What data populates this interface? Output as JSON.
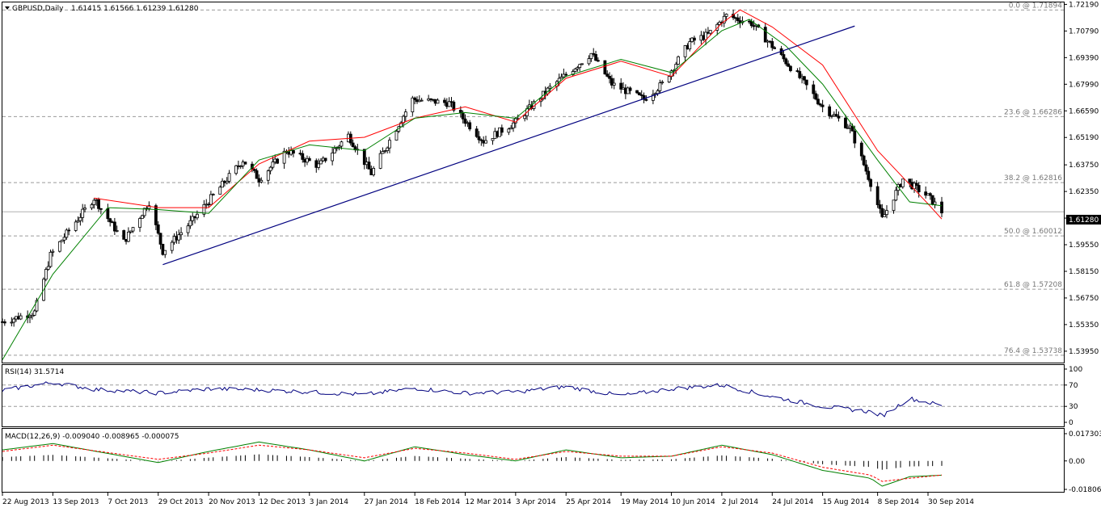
{
  "chart_data": [
    {
      "type": "candlestick",
      "symbol_header": "GBPUSD,Daily",
      "ohlc_header": "1.61415 1.61566 1.61239 1.61280",
      "current_price": 1.6128,
      "current_price_label": "1.61280",
      "y_range": [
        1.5335,
        1.7225
      ],
      "y_ticks": [
        "1.72190",
        "1.70790",
        "1.69390",
        "1.67990",
        "1.66590",
        "1.65190",
        "1.63750",
        "1.62350",
        "1.60950",
        "1.59550",
        "1.58150",
        "1.56750",
        "1.55350",
        "1.53950"
      ],
      "x_ticks": [
        "22 Aug 2013",
        "13 Sep 2013",
        "7 Oct 2013",
        "29 Oct 2013",
        "20 Nov 2013",
        "12 Dec 2013",
        "3 Jan 2014",
        "27 Jan 2014",
        "18 Feb 2014",
        "12 Mar 2014",
        "3 Apr 2014",
        "25 Apr 2014",
        "19 May 2014",
        "10 Jun 2014",
        "2 Jul 2014",
        "24 Jul 2014",
        "15 Aug 2014",
        "8 Sep 2014",
        "30 Sep 2014"
      ],
      "fibonacci_levels": [
        {
          "label": "0.0 @ 1.71894",
          "price": 1.71894
        },
        {
          "label": "23.6 @ 1.66286",
          "price": 1.66286
        },
        {
          "label": "38.2 @ 1.62816",
          "price": 1.62816
        },
        {
          "label": "50.0 @ 1.60012",
          "price": 1.60012
        },
        {
          "label": "61.8 @ 1.57208",
          "price": 1.57208
        },
        {
          "label": "76.4 @ 1.53738",
          "price": 1.53738
        }
      ],
      "trendline": {
        "from": {
          "date": "31 Oct 2013",
          "price": 1.585
        },
        "to": {
          "date": "29 Aug 2014",
          "price": 1.7105
        },
        "color": "#00007f"
      },
      "price_path": [
        {
          "date": "22 Aug 2013",
          "price": 1.555
        },
        {
          "date": "5 Sep 2013",
          "price": 1.56
        },
        {
          "date": "12 Sep 2013",
          "price": 1.59
        },
        {
          "date": "20 Sep 2013",
          "price": 1.603
        },
        {
          "date": "1 Oct 2013",
          "price": 1.62
        },
        {
          "date": "14 Oct 2013",
          "price": 1.597
        },
        {
          "date": "25 Oct 2013",
          "price": 1.618
        },
        {
          "date": "31 Oct 2013",
          "price": 1.592
        },
        {
          "date": "12 Nov 2013",
          "price": 1.607
        },
        {
          "date": "5 Dec 2013",
          "price": 1.64
        },
        {
          "date": "12 Dec 2013",
          "price": 1.63
        },
        {
          "date": "24 Dec 2013",
          "price": 1.645
        },
        {
          "date": "7 Jan 2014",
          "price": 1.637
        },
        {
          "date": "20 Jan 2014",
          "price": 1.653
        },
        {
          "date": "30 Jan 2014",
          "price": 1.633
        },
        {
          "date": "17 Feb 2014",
          "price": 1.672
        },
        {
          "date": "5 Mar 2014",
          "price": 1.67
        },
        {
          "date": "20 Mar 2014",
          "price": 1.65
        },
        {
          "date": "3 Apr 2014",
          "price": 1.66
        },
        {
          "date": "18 Apr 2014",
          "price": 1.678
        },
        {
          "date": "6 May 2014",
          "price": 1.696
        },
        {
          "date": "15 May 2014",
          "price": 1.68
        },
        {
          "date": "29 May 2014",
          "price": 1.672
        },
        {
          "date": "6 Jun 2014",
          "price": 1.68
        },
        {
          "date": "18 Jun 2014",
          "price": 1.702
        },
        {
          "date": "26 Jun 2014",
          "price": 1.706
        },
        {
          "date": "4 Jul 2014",
          "price": 1.716
        },
        {
          "date": "15 Jul 2014",
          "price": 1.712
        },
        {
          "date": "24 Jul 2014",
          "price": 1.7
        },
        {
          "date": "6 Aug 2014",
          "price": 1.682
        },
        {
          "date": "15 Aug 2014",
          "price": 1.668
        },
        {
          "date": "27 Aug 2014",
          "price": 1.657
        },
        {
          "date": "5 Sep 2014",
          "price": 1.628
        },
        {
          "date": "10 Sep 2014",
          "price": 1.609
        },
        {
          "date": "19 Sep 2014",
          "price": 1.63
        },
        {
          "date": "30 Sep 2014",
          "price": 1.621
        },
        {
          "date": "6 Oct 2014",
          "price": 1.6128
        }
      ],
      "moving_averages": [
        {
          "color": "#ff0000",
          "points": [
            {
              "date": "1 Oct 2013",
              "price": 1.62
            },
            {
              "date": "29 Oct 2013",
              "price": 1.615
            },
            {
              "date": "20 Nov 2013",
              "price": 1.615
            },
            {
              "date": "12 Dec 2013",
              "price": 1.638
            },
            {
              "date": "3 Jan 2014",
              "price": 1.65
            },
            {
              "date": "27 Jan 2014",
              "price": 1.652
            },
            {
              "date": "18 Feb 2014",
              "price": 1.662
            },
            {
              "date": "12 Mar 2014",
              "price": 1.668
            },
            {
              "date": "3 Apr 2014",
              "price": 1.66
            },
            {
              "date": "25 Apr 2014",
              "price": 1.683
            },
            {
              "date": "19 May 2014",
              "price": 1.692
            },
            {
              "date": "10 Jun 2014",
              "price": 1.684
            },
            {
              "date": "2 Jul 2014",
              "price": 1.712
            },
            {
              "date": "10 Jul 2014",
              "price": 1.719
            },
            {
              "date": "24 Jul 2014",
              "price": 1.71
            },
            {
              "date": "15 Aug 2014",
              "price": 1.69
            },
            {
              "date": "8 Sep 2014",
              "price": 1.645
            },
            {
              "date": "30 Sep 2014",
              "price": 1.617
            },
            {
              "date": "6 Oct 2014",
              "price": 1.609
            }
          ]
        },
        {
          "color": "#008000",
          "points": [
            {
              "date": "22 Aug 2013",
              "price": 1.535
            },
            {
              "date": "13 Sep 2013",
              "price": 1.58
            },
            {
              "date": "7 Oct 2013",
              "price": 1.615
            },
            {
              "date": "29 Oct 2013",
              "price": 1.614
            },
            {
              "date": "20 Nov 2013",
              "price": 1.612
            },
            {
              "date": "12 Dec 2013",
              "price": 1.64
            },
            {
              "date": "3 Jan 2014",
              "price": 1.648
            },
            {
              "date": "27 Jan 2014",
              "price": 1.645
            },
            {
              "date": "18 Feb 2014",
              "price": 1.662
            },
            {
              "date": "12 Mar 2014",
              "price": 1.665
            },
            {
              "date": "3 Apr 2014",
              "price": 1.662
            },
            {
              "date": "25 Apr 2014",
              "price": 1.684
            },
            {
              "date": "19 May 2014",
              "price": 1.693
            },
            {
              "date": "10 Jun 2014",
              "price": 1.686
            },
            {
              "date": "2 Jul 2014",
              "price": 1.708
            },
            {
              "date": "14 Jul 2014",
              "price": 1.714
            },
            {
              "date": "30 Jul 2014",
              "price": 1.7
            },
            {
              "date": "15 Aug 2014",
              "price": 1.68
            },
            {
              "date": "8 Sep 2014",
              "price": 1.64
            },
            {
              "date": "22 Sep 2014",
              "price": 1.618
            },
            {
              "date": "6 Oct 2014",
              "price": 1.616
            }
          ]
        }
      ]
    },
    {
      "type": "line",
      "label": "RSI(14) 31.5714",
      "y_range": [
        0,
        100
      ],
      "y_ticks": [
        "100",
        "70",
        "30",
        "0"
      ],
      "levels": [
        70,
        30
      ],
      "line_color": "#00007f",
      "points": [
        {
          "date": "22 Aug 2013",
          "value": 60
        },
        {
          "date": "13 Sep 2013",
          "value": 75
        },
        {
          "date": "1 Oct 2013",
          "value": 62
        },
        {
          "date": "29 Oct 2013",
          "value": 55
        },
        {
          "date": "20 Nov 2013",
          "value": 63
        },
        {
          "date": "12 Dec 2013",
          "value": 61
        },
        {
          "date": "3 Jan 2014",
          "value": 57
        },
        {
          "date": "27 Jan 2014",
          "value": 52
        },
        {
          "date": "18 Feb 2014",
          "value": 64
        },
        {
          "date": "12 Mar 2014",
          "value": 55
        },
        {
          "date": "3 Apr 2014",
          "value": 57
        },
        {
          "date": "25 Apr 2014",
          "value": 67
        },
        {
          "date": "19 May 2014",
          "value": 50
        },
        {
          "date": "10 Jun 2014",
          "value": 63
        },
        {
          "date": "2 Jul 2014",
          "value": 70
        },
        {
          "date": "24 Jul 2014",
          "value": 48
        },
        {
          "date": "15 Aug 2014",
          "value": 30
        },
        {
          "date": "5 Sep 2014",
          "value": 20
        },
        {
          "date": "10 Sep 2014",
          "value": 12
        },
        {
          "date": "22 Sep 2014",
          "value": 45
        },
        {
          "date": "6 Oct 2014",
          "value": 31.57
        }
      ]
    },
    {
      "type": "histogram+line",
      "label": "MACD(12,26,9) -0.009040 -0.008965 -0.000075",
      "y_range": [
        -0.01806,
        0.0173
      ],
      "y_ticks": [
        "0.017303",
        "0.00",
        "-0.018061"
      ],
      "series": [
        {
          "name": "macd",
          "color": "#008000",
          "points": [
            {
              "date": "22 Aug 2013",
              "value": 0.007
            },
            {
              "date": "13 Sep 2013",
              "value": 0.011
            },
            {
              "date": "29 Oct 2013",
              "value": -0.001
            },
            {
              "date": "20 Nov 2013",
              "value": 0.006
            },
            {
              "date": "12 Dec 2013",
              "value": 0.012
            },
            {
              "date": "3 Jan 2014",
              "value": 0.007
            },
            {
              "date": "27 Jan 2014",
              "value": 0.0
            },
            {
              "date": "18 Feb 2014",
              "value": 0.009
            },
            {
              "date": "12 Mar 2014",
              "value": 0.004
            },
            {
              "date": "3 Apr 2014",
              "value": 0.0
            },
            {
              "date": "25 Apr 2014",
              "value": 0.007
            },
            {
              "date": "19 May 2014",
              "value": 0.002
            },
            {
              "date": "10 Jun 2014",
              "value": 0.003
            },
            {
              "date": "2 Jul 2014",
              "value": 0.01
            },
            {
              "date": "24 Jul 2014",
              "value": 0.004
            },
            {
              "date": "15 Aug 2014",
              "value": -0.006
            },
            {
              "date": "5 Sep 2014",
              "value": -0.011
            },
            {
              "date": "10 Sep 2014",
              "value": -0.016
            },
            {
              "date": "22 Sep 2014",
              "value": -0.01
            },
            {
              "date": "6 Oct 2014",
              "value": -0.00904
            }
          ]
        },
        {
          "name": "signal",
          "color": "#ff0000",
          "points": [
            {
              "date": "22 Aug 2013",
              "value": 0.006
            },
            {
              "date": "13 Sep 2013",
              "value": 0.01
            },
            {
              "date": "29 Oct 2013",
              "value": 0.001
            },
            {
              "date": "20 Nov 2013",
              "value": 0.005
            },
            {
              "date": "12 Dec 2013",
              "value": 0.01
            },
            {
              "date": "3 Jan 2014",
              "value": 0.007
            },
            {
              "date": "27 Jan 2014",
              "value": 0.002
            },
            {
              "date": "18 Feb 2014",
              "value": 0.008
            },
            {
              "date": "12 Mar 2014",
              "value": 0.005
            },
            {
              "date": "3 Apr 2014",
              "value": 0.001
            },
            {
              "date": "25 Apr 2014",
              "value": 0.006
            },
            {
              "date": "19 May 2014",
              "value": 0.003
            },
            {
              "date": "10 Jun 2014",
              "value": 0.003
            },
            {
              "date": "2 Jul 2014",
              "value": 0.009
            },
            {
              "date": "24 Jul 2014",
              "value": 0.005
            },
            {
              "date": "15 Aug 2014",
              "value": -0.004
            },
            {
              "date": "5 Sep 2014",
              "value": -0.009
            },
            {
              "date": "10 Sep 2014",
              "value": -0.013
            },
            {
              "date": "22 Sep 2014",
              "value": -0.011
            },
            {
              "date": "6 Oct 2014",
              "value": -0.008965
            }
          ]
        }
      ]
    }
  ]
}
